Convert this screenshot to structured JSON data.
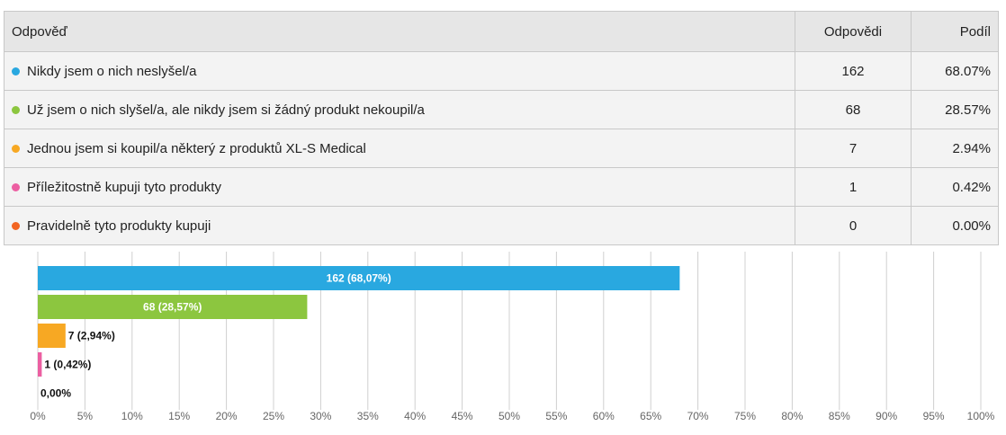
{
  "table": {
    "header": [
      "Odpověď",
      "Odpovědi",
      "Podíl"
    ],
    "rows": [
      {
        "color": "#29a8e0",
        "answer": "Nikdy jsem o nich neslyšel/a",
        "count": "162",
        "share": "68.07%"
      },
      {
        "color": "#8cc63f",
        "answer": "Už jsem o nich slyšel/a, ale nikdy jsem si žádný produkt nekoupil/a",
        "count": "68",
        "share": "28.57%"
      },
      {
        "color": "#f7a823",
        "answer": "Jednou jsem si koupil/a některý z produktů XL-S Medical",
        "count": "7",
        "share": "2.94%"
      },
      {
        "color": "#ec5fa2",
        "answer": "Příležitostně kupuji tyto produkty",
        "count": "1",
        "share": "0.42%"
      },
      {
        "color": "#f26522",
        "answer": "Pravidelně tyto produkty kupuji",
        "count": "0",
        "share": "0.00%"
      }
    ]
  },
  "chart_data": {
    "type": "hbar",
    "values": [
      68.07,
      28.57,
      2.94,
      0.42,
      0
    ],
    "value_labels": [
      "162 (68,07%)",
      "68 (28,57%)",
      "7 (2,94%)",
      "1 (0,42%)",
      "0,00%"
    ],
    "colors": [
      "#29a8e0",
      "#8cc63f",
      "#f7a823",
      "#ec5fa2",
      "#f26522"
    ],
    "xlim": [
      0,
      100
    ],
    "xticks": [
      {
        "value": 0,
        "label": "0%"
      },
      {
        "value": 5,
        "label": "5%"
      },
      {
        "value": 10,
        "label": "10%"
      },
      {
        "value": 15,
        "label": "15%"
      },
      {
        "value": 20,
        "label": "20%"
      },
      {
        "value": 25,
        "label": "25%"
      },
      {
        "value": 30,
        "label": "30%"
      },
      {
        "value": 35,
        "label": "35%"
      },
      {
        "value": 40,
        "label": "40%"
      },
      {
        "value": 45,
        "label": "45%"
      },
      {
        "value": 50,
        "label": "50%"
      },
      {
        "value": 55,
        "label": "55%"
      },
      {
        "value": 60,
        "label": "60%"
      },
      {
        "value": 65,
        "label": "65%"
      },
      {
        "value": 70,
        "label": "70%"
      },
      {
        "value": 75,
        "label": "75%"
      },
      {
        "value": 80,
        "label": "80%"
      },
      {
        "value": 85,
        "label": "85%"
      },
      {
        "value": 90,
        "label": "90%"
      },
      {
        "value": 95,
        "label": "95%"
      },
      {
        "value": 100,
        "label": "100%"
      }
    ],
    "grid": true
  }
}
